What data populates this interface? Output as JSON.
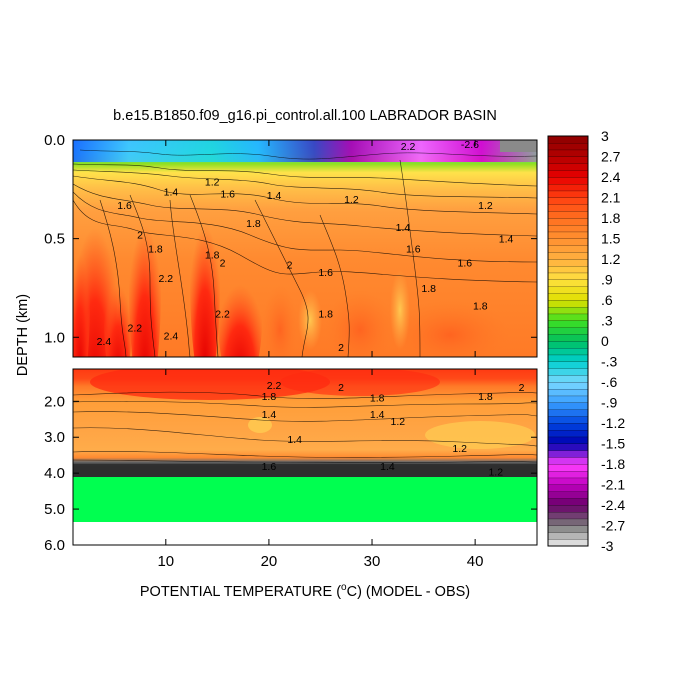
{
  "chart_data": {
    "type": "heatmap",
    "title": "b.e15.B1850.f09_g16.pi_control.all.100 LABRADOR BASIN",
    "xlabel_pre": "POTENTIAL TEMPERATURE (",
    "xlabel_sup": "o",
    "xlabel_post": "C) (MODEL - OBS)",
    "ylabel": "DEPTH (km)",
    "x_range": [
      1,
      46
    ],
    "x_ticks": [
      10,
      20,
      30,
      40
    ],
    "x_tick_labels": [
      "10",
      "20",
      "30",
      "40"
    ],
    "upper_panel": {
      "y_range": [
        0.0,
        1.1
      ],
      "y_ticks": [
        0.0,
        0.5,
        1.0
      ],
      "y_tick_labels": [
        "0.0",
        "0.5",
        "1.0"
      ]
    },
    "lower_panel": {
      "y_range": [
        1.1,
        6.0
      ],
      "y_ticks": [
        2.0,
        3.0,
        4.0,
        5.0,
        6.0
      ],
      "y_tick_labels": [
        "2.0",
        "3.0",
        "4.0",
        "5.0",
        "6.0"
      ],
      "land_below_depth": 4.1,
      "no_data_below_depth": 5.4
    },
    "colorbar": {
      "min": -3,
      "max": 3,
      "interval": 0.1,
      "labels": [
        "3",
        "2.7",
        "2.4",
        "2.1",
        "1.8",
        "1.5",
        "1.2",
        ".9",
        ".6",
        ".3",
        "0",
        "-.3",
        "-.6",
        "-.9",
        "-1.2",
        "-1.5",
        "-1.8",
        "-2.1",
        "-2.4",
        "-2.7",
        "-3"
      ],
      "colors": [
        "#f0f0f0",
        "#7a7a7a",
        "#6a006a",
        "#c000c0",
        "#ff40ff",
        "#0000b0",
        "#0044e0",
        "#3aa0ff",
        "#7ad8ff",
        "#00d0d0",
        "#00c060",
        "#40e020",
        "#e0e000",
        "#ffe040",
        "#ffb040",
        "#ff9030",
        "#ff7020",
        "#ff4010",
        "#e80000",
        "#b40000",
        "#8c0000"
      ],
      "land_color": "#00ff50"
    },
    "contour_labels": [
      {
        "text": "1.6",
        "x": 6.0,
        "y": 0.33
      },
      {
        "text": "1.4",
        "x": 10.5,
        "y": 0.26
      },
      {
        "text": "1.2",
        "x": 14.5,
        "y": 0.21
      },
      {
        "text": "1.6",
        "x": 16.0,
        "y": 0.27
      },
      {
        "text": "1.8",
        "x": 18.5,
        "y": 0.42
      },
      {
        "text": "2",
        "x": 7.5,
        "y": 0.48
      },
      {
        "text": "1.8",
        "x": 9.0,
        "y": 0.55
      },
      {
        "text": "2.2",
        "x": 10.0,
        "y": 0.7
      },
      {
        "text": "1.8",
        "x": 14.5,
        "y": 0.58
      },
      {
        "text": "2",
        "x": 15.5,
        "y": 0.62
      },
      {
        "text": "2",
        "x": 22.0,
        "y": 0.63
      },
      {
        "text": "1.4",
        "x": 20.5,
        "y": 0.28
      },
      {
        "text": "1.2",
        "x": 28.0,
        "y": 0.3
      },
      {
        "text": "1.6",
        "x": 25.5,
        "y": 0.67
      },
      {
        "text": "1.8",
        "x": 25.5,
        "y": 0.88
      },
      {
        "text": "2",
        "x": 27.0,
        "y": 1.05
      },
      {
        "text": "1.4",
        "x": 33.0,
        "y": 0.44
      },
      {
        "text": "1.6",
        "x": 34.0,
        "y": 0.55
      },
      {
        "text": "1.8",
        "x": 35.5,
        "y": 0.75
      },
      {
        "text": "1.6",
        "x": 39.0,
        "y": 0.62
      },
      {
        "text": "1.8",
        "x": 40.5,
        "y": 0.84
      },
      {
        "text": "1.4",
        "x": 43.0,
        "y": 0.5
      },
      {
        "text": "1.2",
        "x": 41.0,
        "y": 0.33
      },
      {
        "text": "2.2",
        "x": 7.0,
        "y": 0.95
      },
      {
        "text": "2.4",
        "x": 4.0,
        "y": 1.02
      },
      {
        "text": "2.4",
        "x": 10.5,
        "y": 0.99
      },
      {
        "text": "2.2",
        "x": 15.5,
        "y": 0.88
      },
      {
        "text": "2.2",
        "x": 20.5,
        "y": 1.55
      },
      {
        "text": "1.8",
        "x": 20.0,
        "y": 1.85
      },
      {
        "text": "1.4",
        "x": 20.0,
        "y": 2.35
      },
      {
        "text": "1.4",
        "x": 22.5,
        "y": 3.05
      },
      {
        "text": "1.8",
        "x": 30.5,
        "y": 1.9
      },
      {
        "text": "1.4",
        "x": 30.5,
        "y": 2.35
      },
      {
        "text": "1.2",
        "x": 32.5,
        "y": 2.55
      },
      {
        "text": "1.8",
        "x": 41.0,
        "y": 1.85
      },
      {
        "text": "1.2",
        "x": 38.5,
        "y": 3.3
      },
      {
        "text": "1.6",
        "x": 20.0,
        "y": 3.8
      },
      {
        "text": "1.4",
        "x": 31.5,
        "y": 3.8
      },
      {
        "text": "1.2",
        "x": 42.0,
        "y": 3.95
      },
      {
        "text": "2",
        "x": 27.0,
        "y": 1.6
      },
      {
        "text": "2",
        "x": 44.5,
        "y": 1.6
      },
      {
        "text": "2.2",
        "x": 33.5,
        "y": 0.03
      },
      {
        "text": "-2.6",
        "x": 39.5,
        "y": 0.02
      }
    ]
  }
}
